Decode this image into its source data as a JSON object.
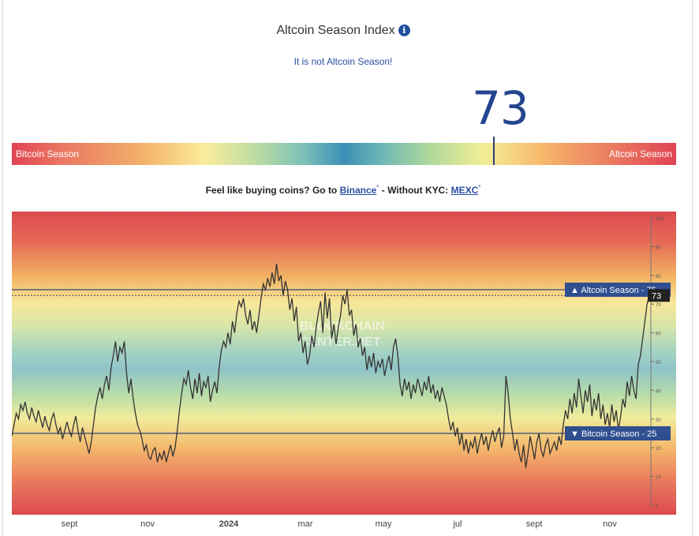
{
  "header": {
    "title": "Altcoin Season Index",
    "info_icon": "info-icon",
    "status": "It is not Altcoin Season!"
  },
  "gauge": {
    "value_text": "73",
    "value": 73,
    "left_label": "Bitcoin Season",
    "right_label": "Altcoin Season"
  },
  "promo": {
    "prefix": "Feel like buying coins? Go to ",
    "link1": "Binance",
    "asterisk": "*",
    "middle": " - Without KYC: ",
    "link2": "MEXC"
  },
  "chart_data": {
    "type": "line",
    "ylim": [
      0,
      100
    ],
    "y_ticks": [
      0,
      10,
      20,
      30,
      40,
      50,
      60,
      70,
      80,
      90,
      100
    ],
    "x_labels": [
      "sept",
      "nov",
      "2024",
      "mar",
      "may",
      "jul",
      "sept",
      "nov"
    ],
    "thresholds": [
      {
        "label": "▲ Altcoin Season - 75",
        "value": 75
      },
      {
        "label": "▼ Bitcoin Season - 25",
        "value": 25
      }
    ],
    "current_label": "73",
    "current_value": 73,
    "watermark": [
      "BLOCKCHAIN",
      "CENTER.NET"
    ],
    "series": [
      {
        "values": [
          24,
          28,
          32,
          30,
          35,
          33,
          36,
          32,
          30,
          34,
          31,
          29,
          33,
          30,
          27,
          31,
          28,
          26,
          30,
          32,
          28,
          25,
          27,
          23,
          26,
          29,
          26,
          24,
          28,
          31,
          26,
          22,
          27,
          24,
          21,
          18,
          22,
          28,
          34,
          38,
          41,
          37,
          42,
          45,
          40,
          48,
          52,
          57,
          50,
          55,
          53,
          57,
          46,
          39,
          44,
          37,
          32,
          28,
          26,
          23,
          19,
          21,
          17,
          16,
          19,
          20,
          15,
          18,
          16,
          19,
          15,
          18,
          21,
          17,
          20,
          26,
          33,
          39,
          44,
          42,
          47,
          41,
          37,
          44,
          39,
          46,
          38,
          43,
          41,
          45,
          36,
          40,
          43,
          39,
          48,
          54,
          57,
          55,
          60,
          56,
          64,
          60,
          67,
          71,
          69,
          72,
          66,
          63,
          68,
          61,
          64,
          60,
          66,
          72,
          77,
          75,
          79,
          76,
          81,
          77,
          84,
          78,
          80,
          73,
          78,
          75,
          68,
          72,
          64,
          69,
          57,
          60,
          53,
          57,
          49,
          52,
          59,
          55,
          62,
          67,
          71,
          60,
          74,
          65,
          72,
          58,
          63,
          56,
          62,
          66,
          73,
          70,
          75,
          66,
          68,
          59,
          63,
          55,
          58,
          52,
          55,
          47,
          52,
          48,
          53,
          46,
          50,
          48,
          51,
          45,
          49,
          52,
          47,
          55,
          58,
          52,
          42,
          38,
          44,
          40,
          43,
          37,
          42,
          39,
          44,
          41,
          38,
          43,
          40,
          45,
          39,
          42,
          37,
          40,
          36,
          41,
          38,
          35,
          30,
          26,
          29,
          24,
          27,
          21,
          25,
          19,
          23,
          18,
          22,
          20,
          24,
          18,
          22,
          25,
          21,
          24,
          19,
          23,
          26,
          22,
          25,
          27,
          20,
          24,
          45,
          39,
          30,
          25,
          19,
          23,
          18,
          15,
          21,
          13,
          18,
          24,
          20,
          16,
          22,
          25,
          19,
          17,
          21,
          23,
          18,
          20,
          22,
          19,
          24,
          21,
          28,
          33,
          30,
          37,
          32,
          39,
          34,
          44,
          38,
          32,
          40,
          36,
          42,
          31,
          37,
          33,
          39,
          30,
          35,
          28,
          32,
          27,
          35,
          29,
          33,
          26,
          31,
          37,
          34,
          43,
          38,
          45,
          40,
          37,
          49,
          52,
          58,
          64,
          70,
          73
        ]
      }
    ]
  },
  "colors": {
    "accent": "#2b4fa0",
    "value": "#24468f",
    "threshold_label_bg": "#2f4f8f",
    "line": "#333333"
  }
}
